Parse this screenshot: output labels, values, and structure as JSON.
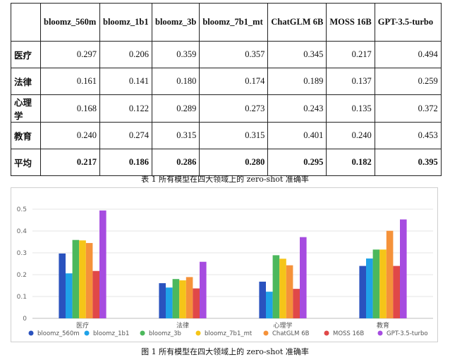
{
  "table": {
    "columns": [
      "",
      "bloomz_560m",
      "bloomz_1b1",
      "bloomz_3b",
      "bloomz_7b1_mt",
      "ChatGLM 6B",
      "MOSS 16B",
      "GPT-3.5-turbo"
    ],
    "rows": [
      {
        "label": "医疗",
        "values": [
          "0.297",
          "0.206",
          "0.359",
          "0.357",
          "0.345",
          "0.217",
          "0.494"
        ]
      },
      {
        "label": "法律",
        "values": [
          "0.161",
          "0.141",
          "0.180",
          "0.174",
          "0.189",
          "0.137",
          "0.259"
        ]
      },
      {
        "label": "心理学",
        "values": [
          "0.168",
          "0.122",
          "0.289",
          "0.273",
          "0.243",
          "0.135",
          "0.372"
        ]
      },
      {
        "label": "教育",
        "values": [
          "0.240",
          "0.274",
          "0.315",
          "0.315",
          "0.401",
          "0.240",
          "0.453"
        ]
      },
      {
        "label": "平均",
        "values": [
          "0.217",
          "0.186",
          "0.286",
          "0.280",
          "0.295",
          "0.182",
          "0.395"
        ]
      }
    ],
    "caption": "表 1 所有模型在四大领域上的 zero-shot 准确率"
  },
  "figure_caption": "图 1 所有模型在四大领域上的 zero-shot 准确率",
  "chart_data": {
    "type": "bar",
    "categories": [
      "医疗",
      "法律",
      "心理学",
      "教育"
    ],
    "series": [
      {
        "name": "bloomz_560m",
        "color": "#2a52be",
        "values": [
          0.297,
          0.161,
          0.168,
          0.24
        ]
      },
      {
        "name": "bloomz_1b1",
        "color": "#1fa2e8",
        "values": [
          0.206,
          0.141,
          0.122,
          0.274
        ]
      },
      {
        "name": "bloomz_3b",
        "color": "#4cb85c",
        "values": [
          0.359,
          0.18,
          0.289,
          0.315
        ]
      },
      {
        "name": "bloomz_7b1_mt",
        "color": "#f5c518",
        "values": [
          0.357,
          0.174,
          0.273,
          0.315
        ]
      },
      {
        "name": "ChatGLM 6B",
        "color": "#f5923a",
        "values": [
          0.345,
          0.189,
          0.243,
          0.401
        ]
      },
      {
        "name": "MOSS 16B",
        "color": "#e04848",
        "values": [
          0.217,
          0.137,
          0.135,
          0.24
        ]
      },
      {
        "name": "GPT-3.5-turbo",
        "color": "#a64ce0",
        "values": [
          0.494,
          0.259,
          0.372,
          0.453
        ]
      }
    ],
    "yticks": [
      "0",
      "0.1",
      "0.2",
      "0.3",
      "0.4",
      "0.5"
    ],
    "ylim": [
      0,
      0.5
    ],
    "grid": true,
    "legend": "bottom",
    "title": "",
    "xlabel": "",
    "ylabel": ""
  }
}
